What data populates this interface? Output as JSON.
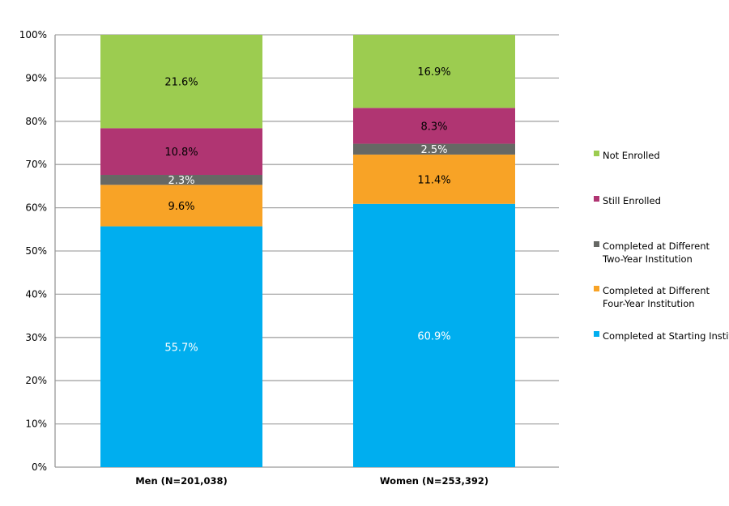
{
  "chart_data": {
    "type": "bar",
    "stacked": true,
    "percent": true,
    "categories": [
      "Men (N=201,038)",
      "Women (N=253,392)"
    ],
    "series": [
      {
        "name": "Completed at Starting Institution",
        "color": "#00aeef",
        "label_color": "#ffffff",
        "values": [
          55.7,
          60.9
        ],
        "labels": [
          "55.7%",
          "60.9%"
        ]
      },
      {
        "name": "Completed at Different Four-Year Institution",
        "legend_lines": [
          "Completed at Different",
          "Four-Year Institution"
        ],
        "color": "#f8a326",
        "label_color": "#000000",
        "values": [
          9.6,
          11.4
        ],
        "labels": [
          "9.6%",
          "11.4%"
        ]
      },
      {
        "name": "Completed at Different Two-Year Institution",
        "legend_lines": [
          "Completed at Different",
          "Two-Year Institution"
        ],
        "color": "#666864",
        "label_color": "#ffffff",
        "values": [
          2.3,
          2.5
        ],
        "labels": [
          "2.3%",
          "2.5%"
        ]
      },
      {
        "name": "Still Enrolled",
        "legend_lines": [
          "Still Enrolled"
        ],
        "color": "#b03572",
        "label_color": "#000000",
        "values": [
          10.8,
          8.3
        ],
        "labels": [
          "10.8%",
          "8.3%"
        ]
      },
      {
        "name": "Not Enrolled",
        "legend_lines": [
          "Not Enrolled"
        ],
        "color": "#9ccc50",
        "label_color": "#000000",
        "values": [
          21.6,
          16.9
        ],
        "labels": [
          "21.6%",
          "16.9%"
        ]
      }
    ],
    "y_ticks": [
      "0%",
      "10%",
      "20%",
      "30%",
      "40%",
      "50%",
      "60%",
      "70%",
      "80%",
      "90%",
      "100%"
    ],
    "ylim": [
      0,
      100
    ],
    "grid": true,
    "legend_position": "right"
  }
}
